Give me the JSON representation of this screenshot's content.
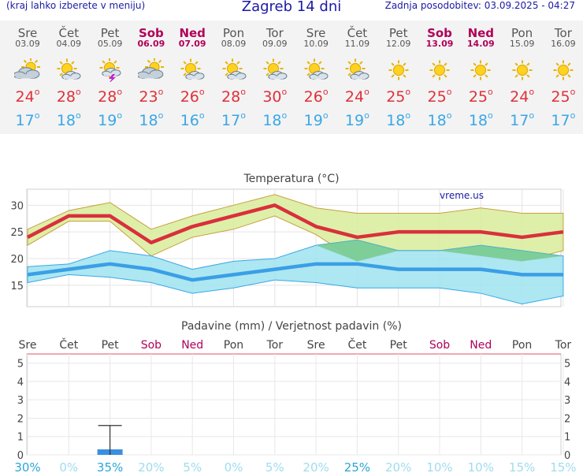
{
  "header": {
    "left_note": "(kraj lahko izberete v meniju)",
    "title": "Zagreb 14 dni",
    "updated": "Zadnja posodobitev: 03.09.2025 - 04:27"
  },
  "days": [
    {
      "name": "Sre",
      "date": "03.09",
      "weekend": false,
      "icon": "cloud-sun-icon",
      "max": "24",
      "min": "17"
    },
    {
      "name": "Čet",
      "date": "04.09",
      "weekend": false,
      "icon": "sun-cloud-icon",
      "max": "28",
      "min": "18"
    },
    {
      "name": "Pet",
      "date": "05.09",
      "weekend": false,
      "icon": "thunderstorm-sun-icon",
      "max": "28",
      "min": "19"
    },
    {
      "name": "Sob",
      "date": "06.09",
      "weekend": true,
      "icon": "cloud-sun-icon",
      "max": "23",
      "min": "18"
    },
    {
      "name": "Ned",
      "date": "07.09",
      "weekend": true,
      "icon": "sun-cloud-icon",
      "max": "26",
      "min": "16"
    },
    {
      "name": "Pon",
      "date": "08.09",
      "weekend": false,
      "icon": "sun-cloud-icon",
      "max": "28",
      "min": "17"
    },
    {
      "name": "Tor",
      "date": "09.09",
      "weekend": false,
      "icon": "sun-cloud-icon",
      "max": "30",
      "min": "18"
    },
    {
      "name": "Sre",
      "date": "10.09",
      "weekend": false,
      "icon": "sun-cloud-icon",
      "max": "26",
      "min": "19"
    },
    {
      "name": "Čet",
      "date": "11.09",
      "weekend": false,
      "icon": "sun-cloud-icon",
      "max": "24",
      "min": "19"
    },
    {
      "name": "Pet",
      "date": "12.09",
      "weekend": false,
      "icon": "sun-icon",
      "max": "25",
      "min": "18"
    },
    {
      "name": "Sob",
      "date": "13.09",
      "weekend": true,
      "icon": "sun-icon",
      "max": "25",
      "min": "18"
    },
    {
      "name": "Ned",
      "date": "14.09",
      "weekend": true,
      "icon": "sun-icon",
      "max": "25",
      "min": "18"
    },
    {
      "name": "Pon",
      "date": "15.09",
      "weekend": false,
      "icon": "sun-icon",
      "max": "24",
      "min": "17"
    },
    {
      "name": "Tor",
      "date": "16.09",
      "weekend": false,
      "icon": "sun-icon",
      "max": "25",
      "min": "17"
    }
  ],
  "degree_symbol": "o",
  "watermark": "vreme.us",
  "colors": {
    "max": "#e0303a",
    "min": "#3aa7e6",
    "weekend": "#b0005a",
    "band_warm": "#d8ec9a",
    "band_cold": "#9fe3ef",
    "precip_bar": "#3a8fe0"
  },
  "chart_data": [
    {
      "type": "line",
      "title": "Temperatura (°C)",
      "x": [
        "Sre",
        "Čet",
        "Pet",
        "Sob",
        "Ned",
        "Pon",
        "Tor",
        "Sre",
        "Čet",
        "Pet",
        "Sob",
        "Ned",
        "Pon",
        "Tor"
      ],
      "yticks": [
        "15",
        "20",
        "25",
        "30"
      ],
      "ylim": [
        11,
        33
      ],
      "series": [
        {
          "role": "max",
          "values": [
            24,
            28,
            28,
            23,
            26,
            28,
            30,
            26,
            24,
            25,
            25,
            25,
            24,
            25
          ]
        },
        {
          "role": "min",
          "values": [
            17,
            18,
            19,
            18,
            16,
            17,
            18,
            19,
            19,
            18,
            18,
            18,
            17,
            17
          ]
        },
        {
          "role": "max_upper",
          "values": [
            25.5,
            29,
            30.5,
            25.5,
            28,
            30,
            32,
            29.5,
            28.5,
            28.5,
            28.5,
            29.5,
            28.5,
            28.5
          ]
        },
        {
          "role": "max_lower",
          "values": [
            22.5,
            27,
            27,
            20.5,
            24,
            25.5,
            28,
            24.5,
            19.5,
            21.5,
            21.5,
            20.5,
            19.5,
            21.5
          ]
        },
        {
          "role": "min_upper",
          "values": [
            18.5,
            19,
            21.5,
            20.5,
            18,
            19.5,
            20,
            22.5,
            23.5,
            21.5,
            21.5,
            22.5,
            21.5,
            20.5
          ]
        },
        {
          "role": "min_lower",
          "values": [
            15.5,
            17,
            16.5,
            15.5,
            13.5,
            14.5,
            16,
            15.5,
            14.5,
            14.5,
            14.5,
            13.5,
            11.5,
            13
          ]
        }
      ]
    },
    {
      "type": "bar",
      "title": "Padavine (mm) / Verjetnost padavin (%)",
      "x": [
        "Sre",
        "Čet",
        "Pet",
        "Sob",
        "Ned",
        "Pon",
        "Tor",
        "Sre",
        "Čet",
        "Pet",
        "Sob",
        "Ned",
        "Pon",
        "Tor"
      ],
      "yticks": [
        "0",
        "1",
        "2",
        "3",
        "4",
        "5"
      ],
      "ylim": [
        0,
        5.5
      ],
      "values": [
        0,
        0,
        0.3,
        0,
        0,
        0,
        0,
        0,
        0,
        0,
        0,
        0,
        0,
        0
      ],
      "error_high": [
        0,
        0,
        1.6,
        0,
        0,
        0,
        0,
        0,
        0,
        0,
        0,
        0,
        0,
        0
      ],
      "probability": [
        "30%",
        "0%",
        "35%",
        "20%",
        "5%",
        "0%",
        "5%",
        "20%",
        "25%",
        "20%",
        "10%",
        "10%",
        "15%",
        "15%"
      ]
    }
  ]
}
